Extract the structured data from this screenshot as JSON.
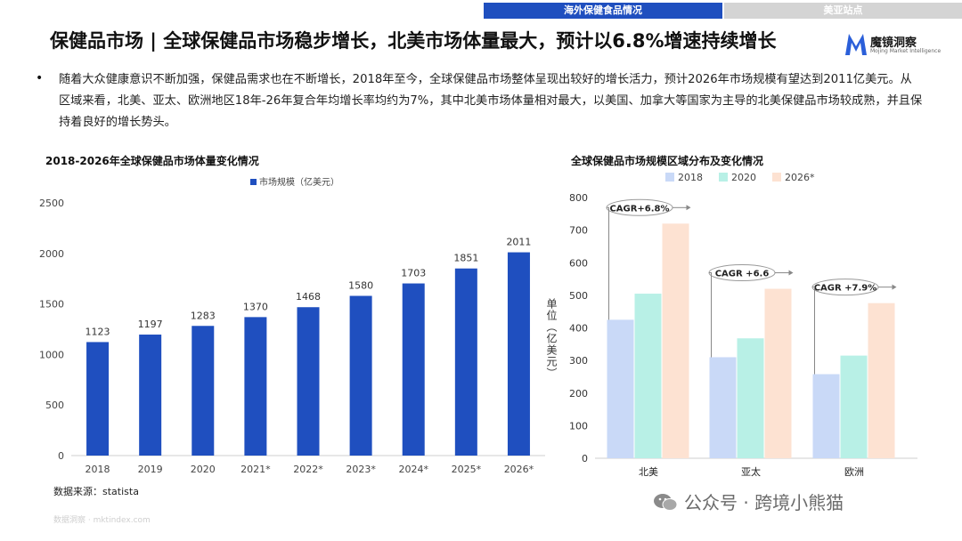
{
  "header": {
    "tabs": [
      {
        "label": "海外保健食品情况"
      },
      {
        "label": "美亚站点"
      }
    ],
    "title": "保健品市场 | 全球保健品市场稳步增长，北美市场体量最大，预计以6.8%增速持续增长",
    "logo_text": "魔镜洞察",
    "logo_sub": "Mojing Market Intelligence"
  },
  "bullet": "随着大众健康意识不断加强，保健品需求也在不断增长，2018年至今，全球保健品市场整体呈现出较好的增长活力，预计2026年市场规模有望达到2011亿美元。从区域来看，北美、亚太、欧洲地区18年-26年复合年均增长率均约为7%，其中北美市场体量相对最大，以美国、加拿大等国家为主导的北美保健品市场较成熟，并且保持着良好的增长势头。",
  "source": "数据来源：statista",
  "footer_url": "数据洞察 · mktindex.com",
  "watermark": "公众号 · 跨境小熊猫",
  "colors": {
    "accent": "#1f4fbf",
    "bar_blue": "#1f4fbf",
    "s2018": "#c9d9f7",
    "s2020": "#b8f0e6",
    "s2026": "#fde2d2"
  },
  "chart_data": [
    {
      "type": "bar",
      "title": "2018-2026年全球保健品市场体量变化情况",
      "categories": [
        "2018",
        "2019",
        "2020",
        "2021*",
        "2022*",
        "2023*",
        "2024*",
        "2025*",
        "2026*"
      ],
      "series": [
        {
          "name": "市场规模（亿美元）",
          "values": [
            1123,
            1197,
            1283,
            1370,
            1468,
            1580,
            1703,
            1851,
            2011
          ]
        }
      ],
      "ylim": [
        0,
        2500
      ],
      "yticks": [
        0,
        500,
        1000,
        1500,
        2000,
        2500
      ],
      "ylabel": "单位（亿美元）",
      "legend": "top-center",
      "grid": false
    },
    {
      "type": "bar",
      "title": "全球保健品市场规模区域分布及变化情况",
      "categories": [
        "北美",
        "亚太",
        "欧洲"
      ],
      "series": [
        {
          "name": "2018",
          "values": [
            425,
            310,
            258
          ]
        },
        {
          "name": "2020",
          "values": [
            505,
            368,
            315
          ]
        },
        {
          "name": "2026*",
          "values": [
            720,
            520,
            476
          ]
        }
      ],
      "annotations": [
        "CAGR+6.8%",
        "CAGR +6.6",
        "CAGR +7.9%"
      ],
      "ylim": [
        0,
        800
      ],
      "yticks": [
        0,
        100,
        200,
        300,
        400,
        500,
        600,
        700,
        800
      ],
      "legend": "top-center",
      "grid": false
    }
  ]
}
